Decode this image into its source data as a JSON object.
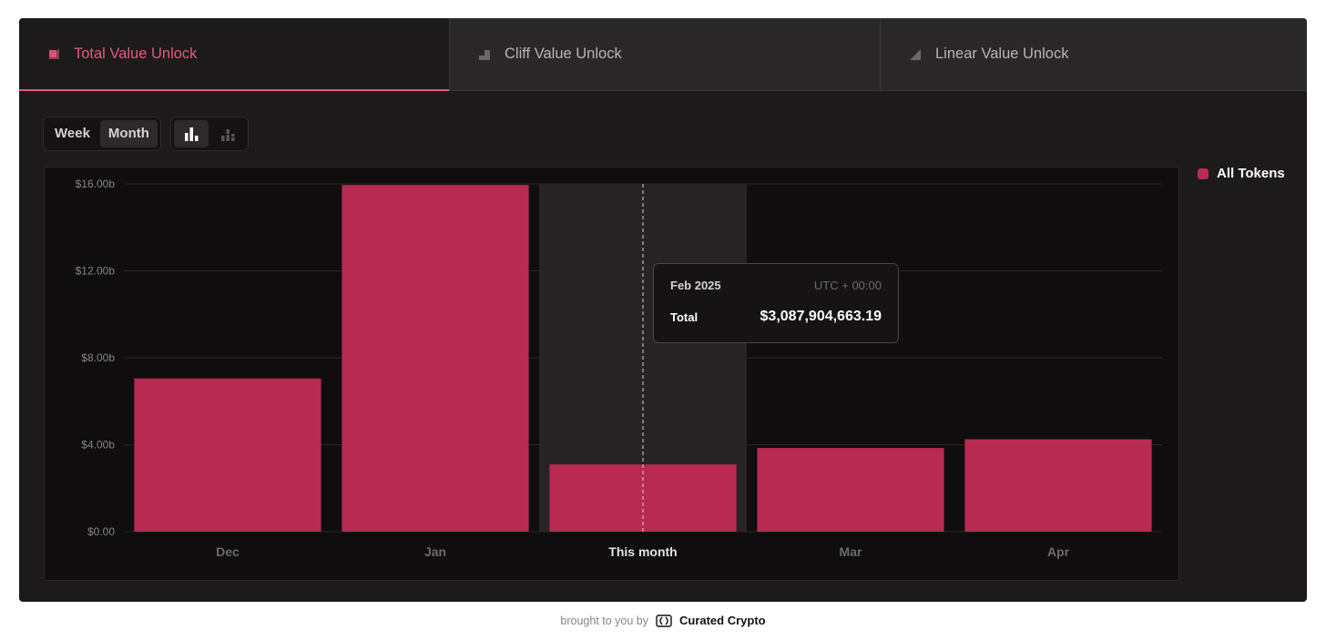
{
  "tabs": [
    {
      "label": "Total Value Unlock",
      "active": true
    },
    {
      "label": "Cliff Value Unlock",
      "active": false
    },
    {
      "label": "Linear Value Unlock",
      "active": false
    }
  ],
  "toolbar": {
    "week_label": "Week",
    "month_label": "Month",
    "selected_period": "Month",
    "view_icons": [
      "bar-chart-icon",
      "stacked-bar-chart-icon"
    ]
  },
  "legend": {
    "label": "All Tokens",
    "color": "#b82a52"
  },
  "colors": {
    "accent": "#e8577f",
    "bar": "#b82a52",
    "hover_band": "#272425"
  },
  "tooltip": {
    "date": "Feb 2025",
    "timezone": "UTC + 00:00",
    "label": "Total",
    "value": "$3,087,904,663.19"
  },
  "footer": {
    "prefix": "brought to you by",
    "brand": "Curated Crypto"
  },
  "chart_data": {
    "type": "bar",
    "categories": [
      "Dec",
      "Jan",
      "This month",
      "Mar",
      "Apr"
    ],
    "values": [
      7.05,
      15.95,
      3.09,
      3.85,
      4.25
    ],
    "units": "b (billions USD)",
    "yticks": [
      "$0.00",
      "$4.00b",
      "$8.00b",
      "$12.00b",
      "$16.00b"
    ],
    "ylim": [
      0,
      16
    ],
    "highlighted_category": "This month",
    "grid": true,
    "legend_position": "right"
  }
}
